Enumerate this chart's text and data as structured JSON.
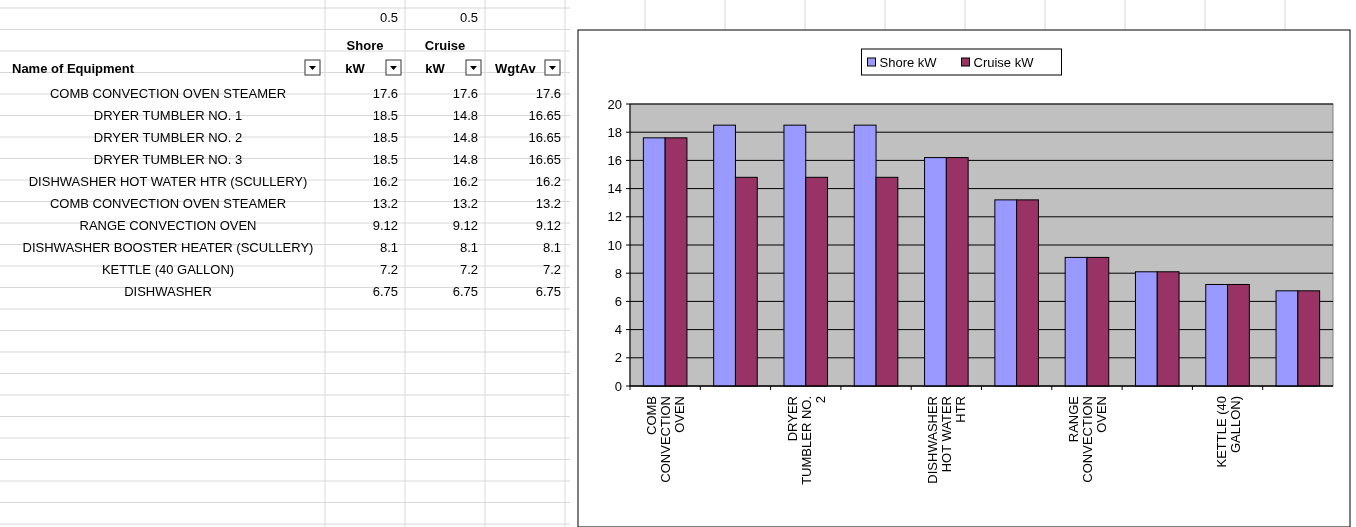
{
  "chart_data": {
    "type": "bar",
    "categories": [
      "COMB CONVECTION OVEN",
      null,
      "DRYER TUMBLER NO. 2",
      null,
      "DISHWASHER HOT WATER HTR",
      null,
      "RANGE CONVECTION OVEN",
      null,
      "KETTLE (40 GALLON)",
      null
    ],
    "series": [
      {
        "name": "Shore kW",
        "color": "#9999ff",
        "values": [
          17.6,
          18.5,
          18.5,
          18.5,
          16.2,
          13.2,
          9.12,
          8.1,
          7.2,
          6.75
        ]
      },
      {
        "name": "Cruise kW",
        "color": "#993366",
        "values": [
          17.6,
          14.8,
          14.8,
          14.8,
          16.2,
          13.2,
          9.12,
          8.1,
          7.2,
          6.75
        ]
      }
    ],
    "ylim": [
      0,
      20
    ],
    "yticks": [
      0,
      2,
      4,
      6,
      8,
      10,
      12,
      14,
      16,
      18,
      20
    ],
    "grid": "y",
    "legend": "top",
    "annotations": [
      "0.5",
      "0.5",
      "Name of Equipment",
      "Shore kW",
      "Cruise kW",
      "WgtAv",
      "COMB CONVECTION OVEN STEAMER",
      "17.6",
      "17.6",
      "17.6",
      "DRYER TUMBLER NO. 1",
      "18.5",
      "14.8",
      "16.65",
      "DRYER TUMBLER NO. 2",
      "18.5",
      "14.8",
      "16.65",
      "DRYER TUMBLER NO. 3",
      "18.5",
      "14.8",
      "16.65",
      "DISHWASHER HOT WATER HTR (SCULLERY)",
      "16.2",
      "16.2",
      "16.2",
      "COMB CONVECTION OVEN STEAMER",
      "13.2",
      "13.2",
      "13.2",
      "RANGE CONVECTION OVEN",
      "9.12",
      "9.12",
      "9.12",
      "DISHWASHER BOOSTER HEATER (SCULLERY)",
      "8.1",
      "8.1",
      "8.1",
      "KETTLE (40 GALLON)",
      "7.2",
      "7.2",
      "7.2",
      "DISHWASHER",
      "6.75",
      "6.75",
      "6.75"
    ]
  }
}
